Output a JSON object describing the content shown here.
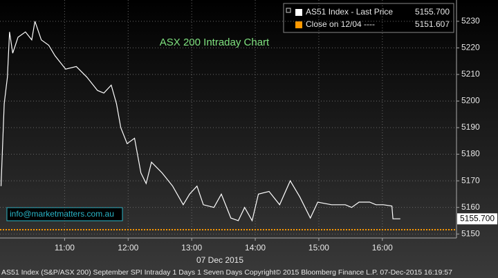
{
  "chart_data": {
    "type": "line",
    "title": "ASX 200 Intraday Chart",
    "x_label": "07 Dec 2015",
    "footnote": "AS51 Index (S&P/ASX 200) September SPI Intraday 1 Days 1 Seven Days Copyright© 2015 Bloomberg Finance L.P. 07-Dec-2015 16:19:57",
    "watermark": "info@marketmatters.com.au",
    "x": [
      "10:00",
      "10:03",
      "10:06",
      "10:08",
      "10:11",
      "10:16",
      "10:23",
      "10:29",
      "10:32",
      "10:38",
      "10:45",
      "10:51",
      "11:01",
      "11:11",
      "11:21",
      "11:31",
      "11:37",
      "11:44",
      "11:49",
      "11:53",
      "11:59",
      "12:06",
      "12:12",
      "12:17",
      "12:22",
      "12:32",
      "12:42",
      "12:52",
      "12:58",
      "13:05",
      "13:11",
      "13:21",
      "13:28",
      "13:37",
      "13:44",
      "13:50",
      "13:57",
      "14:03",
      "14:13",
      "14:23",
      "14:33",
      "14:42",
      "14:52",
      "14:59",
      "15:12",
      "15:25",
      "15:31",
      "15:38",
      "15:48",
      "15:54",
      "16:01",
      "16:09",
      "16:10",
      "16:17"
    ],
    "series": [
      {
        "name": "AS51 Index - Last Price",
        "color": "#ffffff",
        "values": [
          5168,
          5199,
          5209,
          5226,
          5218,
          5224,
          5226,
          5223,
          5230,
          5223,
          5221,
          5217,
          5212,
          5213,
          5209,
          5204,
          5203,
          5206,
          5199,
          5190,
          5184,
          5186,
          5173,
          5169,
          5177,
          5173,
          5168,
          5161,
          5165,
          5168,
          5161,
          5160,
          5165,
          5156,
          5155,
          5160,
          5155,
          5165,
          5166,
          5161,
          5170,
          5164,
          5156,
          5162,
          5161,
          5161,
          5160,
          5162,
          5162,
          5161,
          5161,
          5160.5,
          5155.7,
          5155.7
        ],
        "last": {
          "value": 5155.7,
          "label": "5155.700"
        }
      }
    ],
    "reference_lines": [
      {
        "name": "Close on 12/04 ----",
        "value": 5151.607,
        "color": "#ff9900"
      }
    ],
    "xlim": [
      "09:59",
      "17:10"
    ],
    "xticks": [
      "11:00",
      "12:00",
      "13:00",
      "14:00",
      "15:00",
      "16:00"
    ],
    "ylim": [
      5148.5,
      5238
    ],
    "yticks": [
      5150,
      5160,
      5170,
      5180,
      5190,
      5200,
      5210,
      5220,
      5230
    ],
    "grid": true,
    "legend": "upper right"
  }
}
